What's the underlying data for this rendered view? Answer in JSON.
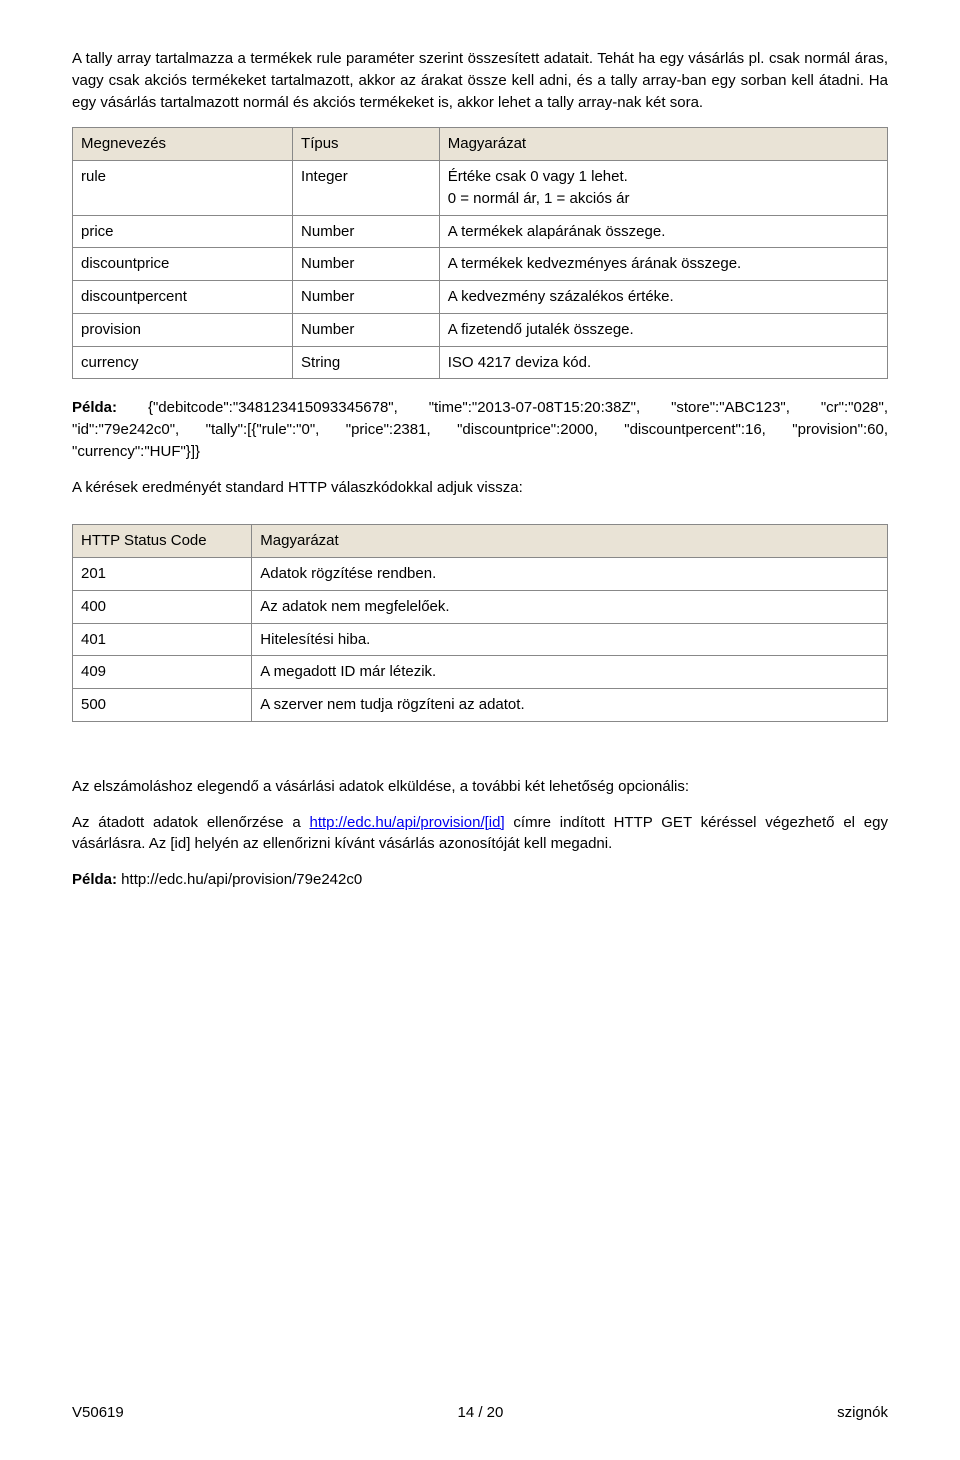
{
  "intro_para": "A tally array tartalmazza a termékek rule paraméter szerint összesített adatait. Tehát ha egy vásárlás pl. csak normál áras, vagy csak akciós termékeket tartalmazott, akkor az árakat össze kell adni, és a tally array-ban egy sorban kell átadni. Ha egy vásárlás tartalmazott normál és akciós termékeket is, akkor lehet a tally array-nak két sora.",
  "table1": {
    "headers": [
      "Megnevezés",
      "Típus",
      "Magyarázat"
    ],
    "rows": [
      [
        "rule",
        "Integer",
        "Értéke csak 0 vagy 1 lehet.\n0 = normál ár, 1 = akciós ár"
      ],
      [
        "price",
        "Number",
        "A termékek alapárának összege."
      ],
      [
        "discountprice",
        "Number",
        "A termékek kedvezményes árának összege."
      ],
      [
        "discountpercent",
        "Number",
        "A kedvezmény százalékos értéke."
      ],
      [
        "provision",
        "Number",
        "A fizetendő jutalék összege."
      ],
      [
        "currency",
        "String",
        "ISO 4217 deviza kód."
      ]
    ]
  },
  "example1_label": "Példa:",
  "example1_text": " {\"debitcode\":\"348123415093345678\", \"time\":\"2013-07-08T15:20:38Z\", \"store\":\"ABC123\", \"cr\":\"028\", \"id\":\"79e242c0\", \"tally\":[{\"rule\":\"0\", \"price\":2381, \"discountprice\":2000, \"discountpercent\":16, \"provision\":60, \"currency\":\"HUF\"}]}",
  "para2": "A kérések eredményét standard HTTP válaszkódokkal adjuk vissza:",
  "table2": {
    "headers": [
      "HTTP Status Code",
      "Magyarázat"
    ],
    "rows": [
      [
        "201",
        "Adatok rögzítése rendben."
      ],
      [
        "400",
        "Az adatok nem megfelelőek."
      ],
      [
        "401",
        "Hitelesítési hiba."
      ],
      [
        "409",
        "A megadott ID már létezik."
      ],
      [
        "500",
        "A szerver nem tudja rögzíteni az adatot."
      ]
    ]
  },
  "para3": "Az elszámoláshoz elegendő a vásárlási adatok elküldése, a további két lehetőség opcionális:",
  "para4_pre": "Az átadott adatok ellenőrzése a ",
  "para4_link": "http://edc.hu/api/provision/[id]",
  "para4_post": " címre indított HTTP GET kéréssel végezhető el egy vásárlásra. Az [id] helyén az ellenőrizni kívánt vásárlás azonosítóját kell megadni.",
  "example2_label": "Példa:",
  "example2_text": " http://edc.hu/api/provision/79e242c0",
  "footer": {
    "left": "V50619",
    "center": "14 / 20",
    "right": "szignók"
  }
}
